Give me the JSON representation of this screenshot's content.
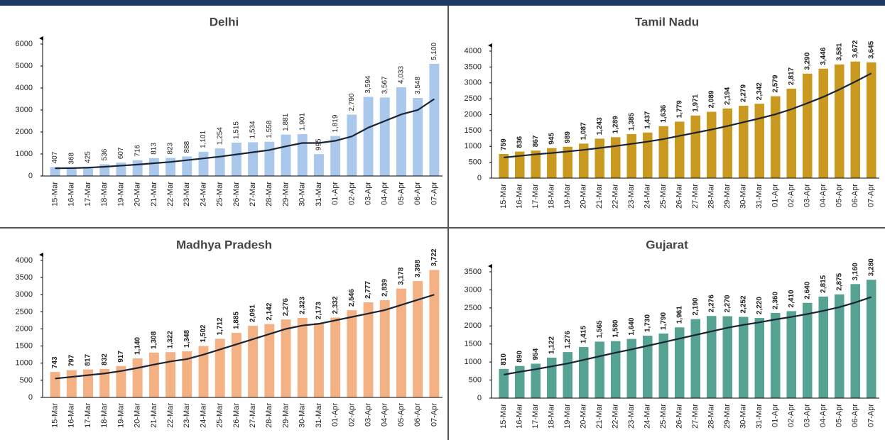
{
  "chart_data": [
    {
      "type": "bar",
      "title": "Delhi",
      "categories": [
        "15-Mar",
        "16-Mar",
        "17-Mar",
        "18-Mar",
        "19-Mar",
        "20-Mar",
        "21-Mar",
        "22-Mar",
        "23-Mar",
        "24-Mar",
        "25-Mar",
        "26-Mar",
        "27-Mar",
        "28-Mar",
        "29-Mar",
        "30-Mar",
        "31-Mar",
        "01-Apr",
        "02-Apr",
        "03-Apr",
        "04-Apr",
        "05-Apr",
        "06-Apr",
        "07-Apr"
      ],
      "values": [
        407,
        368,
        425,
        536,
        607,
        716,
        813,
        823,
        888,
        1101,
        1254,
        1515,
        1534,
        1558,
        1881,
        1901,
        995,
        1819,
        2790,
        3594,
        3567,
        4033,
        3548,
        5100
      ],
      "value_labels": [
        "407",
        "368",
        "425",
        "536",
        "607",
        "716",
        "813",
        "823",
        "888",
        "1,101",
        "1,254",
        "1,515",
        "1,534",
        "1,558",
        "1,881",
        "1,901",
        "995",
        "1,819",
        "2,790",
        "3,594",
        "3,567",
        "4,033",
        "3,548",
        "5,100"
      ],
      "trend": [
        350,
        360,
        380,
        420,
        470,
        520,
        580,
        640,
        720,
        800,
        880,
        980,
        1080,
        1180,
        1350,
        1500,
        1500,
        1600,
        1800,
        2200,
        2500,
        2800,
        3000,
        3500
      ],
      "color": "#a9c8ec",
      "ylim": [
        0,
        6000
      ],
      "yticks": [
        0,
        1000,
        2000,
        3000,
        4000,
        5000,
        6000
      ]
    },
    {
      "type": "bar",
      "title": "Tamil Nadu",
      "categories": [
        "15-Mar",
        "16-Mar",
        "17-Mar",
        "18-Mar",
        "19-Mar",
        "20-Mar",
        "21-Mar",
        "22-Mar",
        "23-Mar",
        "24-Mar",
        "25-Mar",
        "26-Mar",
        "27-Mar",
        "28-Mar",
        "29-Mar",
        "30-Mar",
        "31-Mar",
        "01-Apr",
        "02-Apr",
        "03-Apr",
        "04-Apr",
        "05-Apr",
        "06-Apr",
        "07-Apr"
      ],
      "values": [
        759,
        836,
        867,
        945,
        989,
        1087,
        1243,
        1289,
        1385,
        1437,
        1636,
        1779,
        1971,
        2089,
        2194,
        2279,
        2342,
        2579,
        2817,
        3290,
        3446,
        3581,
        3672,
        3645
      ],
      "value_labels": [
        "759",
        "836",
        "867",
        "945",
        "989",
        "1,087",
        "1,243",
        "1,289",
        "1,385",
        "1,437",
        "1,636",
        "1,779",
        "1,971",
        "2,089",
        "2,194",
        "2,279",
        "2,342",
        "2,579",
        "2,817",
        "3,290",
        "3,446",
        "3,581",
        "3,672",
        "3,645"
      ],
      "trend": [
        650,
        700,
        750,
        790,
        840,
        890,
        950,
        1010,
        1080,
        1150,
        1230,
        1330,
        1430,
        1530,
        1640,
        1760,
        1880,
        2010,
        2170,
        2360,
        2560,
        2790,
        3040,
        3300
      ],
      "color": "#c99a1f",
      "ylim": [
        0,
        4000
      ],
      "yticks": [
        0,
        500,
        1000,
        1500,
        2000,
        2500,
        3000,
        3500,
        4000
      ]
    },
    {
      "type": "bar",
      "title": "Madhya Pradesh",
      "categories": [
        "15-Mar",
        "16-Mar",
        "17-Mar",
        "18-Mar",
        "19-Mar",
        "20-Mar",
        "21-Mar",
        "22-Mar",
        "23-Mar",
        "24-Mar",
        "25-Mar",
        "26-Mar",
        "27-Mar",
        "28-Mar",
        "29-Mar",
        "30-Mar",
        "31-Mar",
        "01-Apr",
        "02-Apr",
        "03-Apr",
        "04-Apr",
        "05-Apr",
        "06-Apr",
        "07-Apr"
      ],
      "values": [
        743,
        797,
        817,
        832,
        917,
        1140,
        1308,
        1322,
        1348,
        1502,
        1712,
        1885,
        2091,
        2142,
        2276,
        2323,
        2173,
        2332,
        2546,
        2777,
        2839,
        3178,
        3398,
        3722
      ],
      "value_labels": [
        "743",
        "797",
        "817",
        "832",
        "917",
        "1,140",
        "1,308",
        "1,322",
        "1,348",
        "1,502",
        "1,712",
        "1,885",
        "2,091",
        "2,142",
        "2,276",
        "2,323",
        "2,173",
        "2,332",
        "2,546",
        "2,777",
        "2,839",
        "3,178",
        "3,398",
        "3,722"
      ],
      "trend": [
        550,
        600,
        650,
        700,
        770,
        860,
        960,
        1050,
        1120,
        1250,
        1400,
        1550,
        1700,
        1850,
        2000,
        2100,
        2150,
        2250,
        2350,
        2450,
        2550,
        2700,
        2850,
        3000
      ],
      "color": "#f4b183",
      "ylim": [
        0,
        4000
      ],
      "yticks": [
        0,
        500,
        1000,
        1500,
        2000,
        2500,
        3000,
        3500,
        4000
      ]
    },
    {
      "type": "bar",
      "title": "Gujarat",
      "categories": [
        "15-Mar",
        "16-Mar",
        "17-Mar",
        "18-Mar",
        "19-Mar",
        "20-Mar",
        "21-Mar",
        "22-Mar",
        "23-Mar",
        "24-Mar",
        "25-Mar",
        "26-Mar",
        "27-Mar",
        "28-Mar",
        "29-Mar",
        "30-Mar",
        "31-Mar",
        "01-Apr",
        "02-Apr",
        "03-Apr",
        "04-Apr",
        "05-Apr",
        "06-Apr",
        "07-Apr"
      ],
      "values": [
        810,
        890,
        954,
        1122,
        1276,
        1415,
        1565,
        1580,
        1640,
        1730,
        1790,
        1961,
        2190,
        2276,
        2270,
        2252,
        2220,
        2360,
        2410,
        2640,
        2815,
        2875,
        3160,
        3280
      ],
      "value_labels": [
        "810",
        "890",
        "954",
        "1,122",
        "1,276",
        "1,415",
        "1,565",
        "1,580",
        "1,640",
        "1,730",
        "1,790",
        "1,961",
        "2,190",
        "2,276",
        "2,270",
        "2,252",
        "2,220",
        "2,360",
        "2,410",
        "2,640",
        "2,815",
        "2,875",
        "3,160",
        "3,280"
      ],
      "trend": [
        650,
        730,
        800,
        880,
        960,
        1060,
        1160,
        1260,
        1350,
        1450,
        1550,
        1650,
        1750,
        1850,
        1950,
        2030,
        2100,
        2180,
        2250,
        2330,
        2420,
        2520,
        2650,
        2800
      ],
      "color": "#56a393",
      "ylim": [
        0,
        3500
      ],
      "yticks": [
        0,
        500,
        1000,
        1500,
        2000,
        2500,
        3000,
        3500
      ]
    }
  ]
}
